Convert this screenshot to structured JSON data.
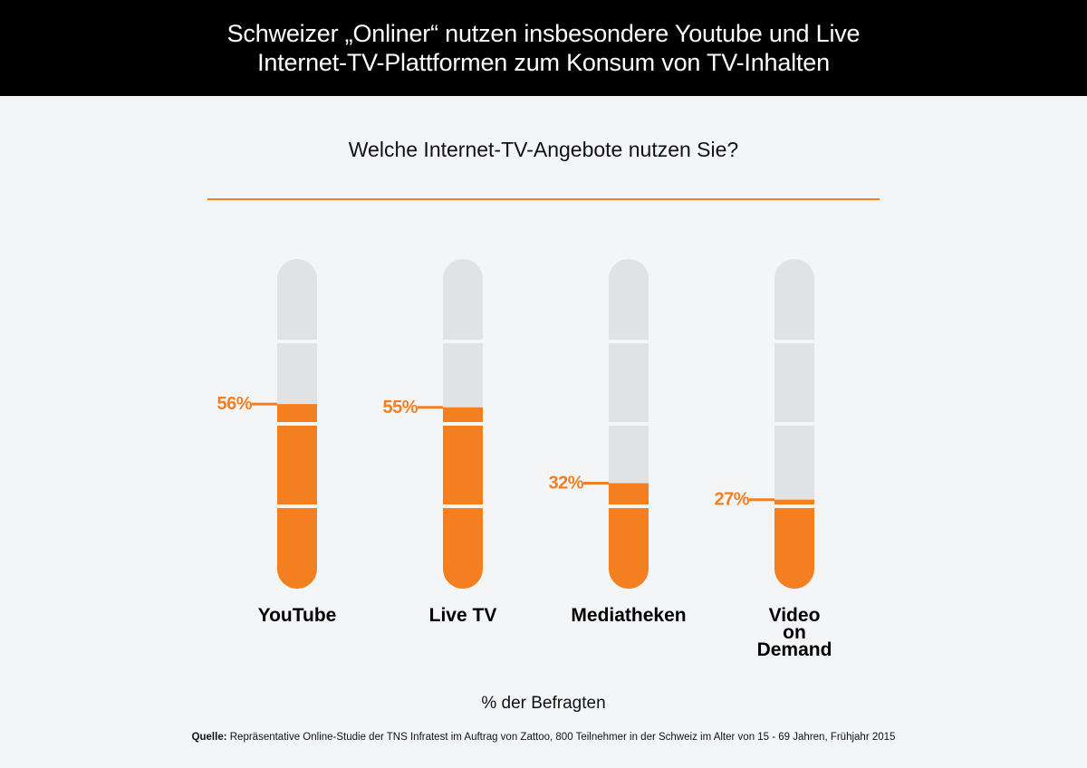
{
  "header": {
    "title_line1": "Schweizer „Onliner“ nutzen insbesondere Youtube und Live",
    "title_line2": "Internet-TV-Plattformen zum Konsum von TV-Inhalten"
  },
  "question": "Welche Internet-TV-Angebote nutzen Sie?",
  "unit_label": "% der Befragten",
  "source": {
    "label": "Quelle:",
    "text": "Repräsentative Online-Studie der TNS Infratest im Auftrag von Zattoo, 800 Teilnehmer in der Schweiz im Alter von 15 - 69 Jahren, Frühjahr 2015"
  },
  "colors": {
    "accent": "#f47f20",
    "track": "#e1e2e4",
    "banner": "#000000",
    "background": "#f4f5f7"
  },
  "chart_data": {
    "type": "bar",
    "categories": [
      [
        "YouTube"
      ],
      [
        "Live TV"
      ],
      [
        "Mediatheken"
      ],
      [
        "Video",
        "on",
        "Demand"
      ]
    ],
    "values": [
      56,
      55,
      32,
      27
    ],
    "value_labels": [
      "56%",
      "55%",
      "32%",
      "27%"
    ],
    "ylim": [
      0,
      100
    ],
    "grid": false
  }
}
